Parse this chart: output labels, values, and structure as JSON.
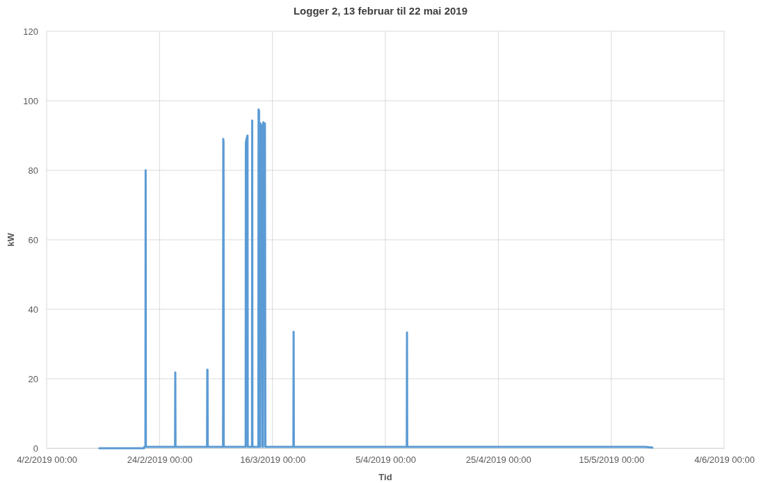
{
  "chart_data": {
    "type": "line",
    "title": "Logger 2, 13 februar til 22 mai 2019",
    "xlabel": "Tid",
    "ylabel": "kW",
    "grid": true,
    "marker": "none",
    "line_style": "solid",
    "xlim": [
      "2019-02-04",
      "2019-06-04"
    ],
    "xticks": [
      {
        "value": "2019-02-04",
        "label": "4/2/2019 00:00"
      },
      {
        "value": "2019-02-24",
        "label": "24/2/2019 00:00"
      },
      {
        "value": "2019-03-16",
        "label": "16/3/2019 00:00"
      },
      {
        "value": "2019-04-05",
        "label": "5/4/2019 00:00"
      },
      {
        "value": "2019-04-25",
        "label": "25/4/2019 00:00"
      },
      {
        "value": "2019-05-15",
        "label": "15/5/2019 00:00"
      },
      {
        "value": "2019-06-04",
        "label": "4/6/2019 00:00"
      }
    ],
    "ylim": [
      0,
      120
    ],
    "yticks": [
      0,
      20,
      40,
      60,
      80,
      100,
      120
    ],
    "series": [
      {
        "color": "#5b9bd5",
        "x": [
          "2019-02-13T08:00",
          "2019-02-21T06:00",
          "2019-02-21T07:00",
          "2019-02-21T12:00",
          "2019-02-21T13:00",
          "2019-02-21T14:00",
          "2019-02-26T18:00",
          "2019-02-26T19:00",
          "2019-02-26T20:00",
          "2019-03-04T10:00",
          "2019-03-04T11:00",
          "2019-03-04T12:00",
          "2019-03-04T13:00",
          "2019-03-07T06:00",
          "2019-03-07T07:00",
          "2019-03-07T08:00",
          "2019-03-07T09:00",
          "2019-03-11T06:00",
          "2019-03-11T07:00",
          "2019-03-11T10:00",
          "2019-03-11T14:00",
          "2019-03-11T15:00",
          "2019-03-12T09:00",
          "2019-03-12T10:00",
          "2019-03-12T11:00",
          "2019-03-13T12:00",
          "2019-03-13T13:00",
          "2019-03-13T15:00",
          "2019-03-13T16:00",
          "2019-03-13T20:00",
          "2019-03-13T21:00",
          "2019-03-14T00:00",
          "2019-03-14T03:00",
          "2019-03-14T06:00",
          "2019-03-14T08:00",
          "2019-03-14T09:00",
          "2019-03-14T14:00",
          "2019-03-14T16:00",
          "2019-03-14T18:00",
          "2019-03-19T17:00",
          "2019-03-19T18:00",
          "2019-03-19T19:00",
          "2019-04-08T19:00",
          "2019-04-08T20:00",
          "2019-04-08T21:00",
          "2019-05-21T00:00",
          "2019-05-22T07:00"
        ],
        "values": [
          0,
          0,
          0.4,
          0.4,
          80,
          0.4,
          0.4,
          21.8,
          0.4,
          0.4,
          22.6,
          22.6,
          0.4,
          0.4,
          89,
          88,
          0.4,
          0.4,
          88,
          89,
          90,
          0.4,
          0.4,
          94.3,
          0.4,
          0.4,
          97.5,
          97,
          0.4,
          0.4,
          93.5,
          90,
          93,
          0.4,
          0.4,
          93.8,
          87,
          93.5,
          0.4,
          0.4,
          33.5,
          0.4,
          0.4,
          33.3,
          0.4,
          0.4,
          0.2
        ]
      }
    ]
  }
}
